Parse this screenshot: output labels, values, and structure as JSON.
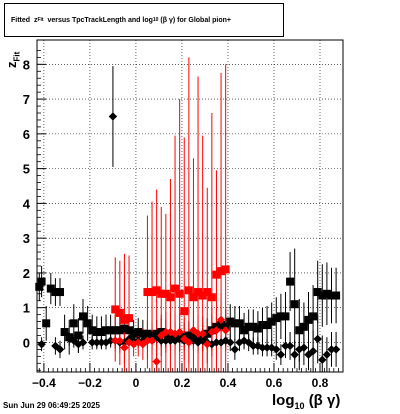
{
  "title": {
    "prefix": "Fitted",
    "var": "z",
    "var_sub": "Fit",
    "mid": "versus TpcTrackLength and log",
    "log_sub": "10",
    "tail": "(β γ) for Global pion+"
  },
  "date_stamp": "Sun Jun 29 06:49:25 2025",
  "xaxis_title": {
    "main": "log",
    "sub": "10",
    "rest": "(β γ)"
  },
  "yaxis_title": {
    "main": "z",
    "sub": "Fit"
  },
  "colors": {
    "black": "#000000",
    "red": "#ff0000",
    "grid": "#000000"
  },
  "chart_data": {
    "type": "scatter",
    "xlim": [
      -0.43,
      0.9
    ],
    "ylim": [
      -0.85,
      8.7
    ],
    "xticks": [
      -0.4,
      -0.2,
      0,
      0.2,
      0.4,
      0.6,
      0.8
    ],
    "xtick_labels": [
      "−0.4",
      "−0.2",
      "0",
      "0.2",
      "0.4",
      "0.6",
      "0.8"
    ],
    "yticks": [
      0,
      1,
      2,
      3,
      4,
      5,
      6,
      7,
      8
    ],
    "ytick_labels": [
      "0",
      "1",
      "2",
      "3",
      "4",
      "5",
      "6",
      "7",
      "8"
    ],
    "grid": true,
    "series": [
      {
        "marker": "square",
        "color": "#000000",
        "x": [
          -0.42,
          -0.41,
          -0.39,
          -0.37,
          -0.35,
          -0.33,
          -0.31,
          -0.29,
          -0.27,
          -0.25,
          -0.23,
          -0.21,
          -0.19,
          -0.17,
          -0.15,
          -0.13,
          -0.11,
          -0.09,
          -0.07,
          -0.05,
          -0.03,
          -0.01,
          0.01,
          0.03,
          0.05,
          0.07,
          0.09,
          0.11,
          0.13,
          0.15,
          0.17,
          0.19,
          0.21,
          0.23,
          0.25,
          0.27,
          0.29,
          0.31,
          0.33,
          0.35,
          0.37,
          0.39,
          0.41,
          0.43,
          0.45,
          0.47,
          0.49,
          0.51,
          0.53,
          0.55,
          0.57,
          0.59,
          0.61,
          0.63,
          0.65,
          0.67,
          0.69,
          0.71,
          0.73,
          0.75,
          0.77,
          0.79,
          0.81,
          0.83,
          0.85,
          0.87
        ],
        "y": [
          1.6,
          1.75,
          0.55,
          1.55,
          1.45,
          1.45,
          0.3,
          0.15,
          0.55,
          0.2,
          0.75,
          0.55,
          0.35,
          0.3,
          0.3,
          0.35,
          0.35,
          0.35,
          0.35,
          0.4,
          0.35,
          0.25,
          0.3,
          0.25,
          0.25,
          0.2,
          0.25,
          0.3,
          0.25,
          0.2,
          0.2,
          0.15,
          0.15,
          0.2,
          0.2,
          0.1,
          0.15,
          0.25,
          0.35,
          0.45,
          0.5,
          0.45,
          0.6,
          0.55,
          0.55,
          0.35,
          0.45,
          0.45,
          0.4,
          0.5,
          0.5,
          0.6,
          0.7,
          0.75,
          0.75,
          1.75,
          1.1,
          0.35,
          0.45,
          0.65,
          0.75,
          1.45,
          1.35,
          1.4,
          1.35,
          1.35
        ],
        "yerr": [
          0.4,
          0.45,
          0.5,
          0.45,
          0.4,
          0.4,
          0.5,
          0.5,
          0.55,
          0.5,
          0.5,
          0.5,
          0.45,
          0.45,
          0.45,
          0.45,
          0.45,
          0.45,
          0.45,
          0.45,
          0.45,
          0.4,
          0.4,
          0.4,
          0.4,
          0.4,
          0.4,
          0.4,
          0.4,
          0.4,
          0.4,
          0.4,
          0.4,
          0.4,
          0.4,
          0.4,
          0.4,
          0.45,
          0.45,
          0.45,
          0.5,
          0.5,
          0.5,
          0.5,
          0.5,
          0.5,
          0.5,
          0.5,
          0.5,
          0.5,
          0.55,
          0.55,
          0.6,
          0.65,
          0.7,
          0.85,
          1.6,
          0.9,
          0.7,
          0.8,
          0.9,
          0.9,
          0.9,
          0.9,
          0.8,
          0.8
        ]
      },
      {
        "marker": "diamond",
        "color": "#000000",
        "x": [
          -0.41,
          -0.35,
          -0.33,
          -0.29,
          -0.27,
          -0.25,
          -0.23,
          -0.19,
          -0.17,
          -0.15,
          -0.13,
          -0.11,
          -0.09,
          -0.07,
          -0.05,
          -0.03,
          -0.01,
          0.01,
          0.03,
          0.05,
          0.07,
          0.09,
          0.11,
          0.13,
          0.15,
          0.17,
          0.19,
          0.21,
          0.23,
          0.25,
          0.27,
          0.29,
          0.31,
          0.33,
          0.35,
          0.37,
          0.39,
          0.41,
          0.43,
          0.45,
          0.47,
          0.49,
          0.51,
          0.53,
          0.55,
          0.57,
          0.59,
          0.61,
          0.63,
          0.65,
          0.67,
          0.69,
          0.71,
          0.73,
          0.75,
          0.77,
          0.79,
          0.81,
          0.83,
          0.85,
          0.87
        ],
        "y": [
          -0.05,
          -0.1,
          -0.2,
          0.1,
          0.05,
          -0.05,
          0.0,
          0.0,
          0.0,
          0.0,
          0.0,
          0.05,
          0.05,
          0.0,
          0.0,
          0.1,
          0.05,
          0.05,
          0.05,
          0.1,
          0.1,
          0.15,
          0.05,
          0.05,
          0.05,
          0.05,
          0.1,
          0.05,
          0.05,
          0.05,
          0.0,
          0.05,
          0.0,
          -0.05,
          0.0,
          0.0,
          0.05,
          0.0,
          -0.2,
          0.0,
          0.05,
          0.0,
          -0.1,
          -0.1,
          -0.15,
          -0.15,
          -0.15,
          -0.2,
          -0.35,
          -0.1,
          -0.1,
          -0.35,
          -0.2,
          -0.15,
          -0.35,
          -0.25,
          0.1,
          -0.5,
          -0.35,
          -0.2,
          -0.2
        ],
        "yerr": [
          0.2,
          0.25,
          0.25,
          0.2,
          0.2,
          0.25,
          0.2,
          0.2,
          0.2,
          0.2,
          0.2,
          0.2,
          0.2,
          0.2,
          0.2,
          0.2,
          0.2,
          0.2,
          0.2,
          0.2,
          0.2,
          0.2,
          0.2,
          0.2,
          0.2,
          0.2,
          0.2,
          0.2,
          0.2,
          0.2,
          0.2,
          0.2,
          0.2,
          0.2,
          0.2,
          0.2,
          0.2,
          0.25,
          0.3,
          0.25,
          0.25,
          0.25,
          0.25,
          0.25,
          0.25,
          0.25,
          0.25,
          0.3,
          0.3,
          0.35,
          0.4,
          0.4,
          0.6,
          0.5,
          0.45,
          0.6,
          0.7,
          0.7,
          0.5,
          0.5,
          0.5
        ]
      },
      {
        "marker": "diamond",
        "color": "#000000",
        "x": [
          -0.1
        ],
        "y": [
          6.5
        ],
        "yerr": [
          1.45
        ]
      },
      {
        "marker": "square",
        "color": "#ff0000",
        "x": [
          -0.09,
          -0.07,
          -0.05,
          -0.03,
          0.05,
          0.07,
          0.09,
          0.11,
          0.13,
          0.15,
          0.17,
          0.19,
          0.21,
          0.23,
          0.25,
          0.27,
          0.29,
          0.31,
          0.33,
          0.35,
          0.37,
          0.39
        ],
        "y": [
          0.95,
          0.85,
          0.65,
          0.7,
          1.45,
          1.45,
          1.5,
          1.4,
          1.4,
          1.3,
          1.55,
          1.4,
          0.9,
          1.5,
          1.3,
          1.45,
          1.35,
          1.45,
          1.3,
          1.95,
          2.05,
          2.1
        ],
        "yerr": [
          1.5,
          1.5,
          1.9,
          1.8,
          2.2,
          2.6,
          2.9,
          2.5,
          2.3,
          3.4,
          4.4,
          5.6,
          5.0,
          6.7,
          4.0,
          6.2,
          4.6,
          3.0,
          5.3,
          3.0,
          5.7,
          5.9
        ]
      },
      {
        "marker": "diamond",
        "color": "#ff0000",
        "x": [
          -0.09,
          -0.07,
          -0.05,
          -0.03,
          -0.01,
          0.01,
          0.03,
          0.05,
          0.07,
          0.09,
          0.11,
          0.13,
          0.15,
          0.17,
          0.19,
          0.21,
          0.23,
          0.25,
          0.27,
          0.29,
          0.31,
          0.33,
          0.35,
          0.37,
          0.39
        ],
        "y": [
          0.05,
          0.05,
          -0.15,
          0.0,
          -0.05,
          0.0,
          -0.05,
          0.05,
          0.05,
          -0.55,
          0.2,
          0.3,
          0.3,
          0.25,
          0.3,
          0.1,
          0.0,
          0.35,
          0.25,
          0.25,
          -0.05,
          0.3,
          0.35,
          0.65,
          0.35
        ],
        "yerr": [
          0.3,
          0.35,
          0.45,
          0.3,
          0.35,
          0.4,
          0.45,
          0.5,
          0.4,
          0.5,
          0.6,
          0.6,
          0.55,
          0.6,
          0.55,
          0.6,
          0.6,
          0.6,
          0.55,
          0.5,
          0.55,
          0.7,
          0.65,
          0.75,
          0.6
        ]
      }
    ]
  }
}
